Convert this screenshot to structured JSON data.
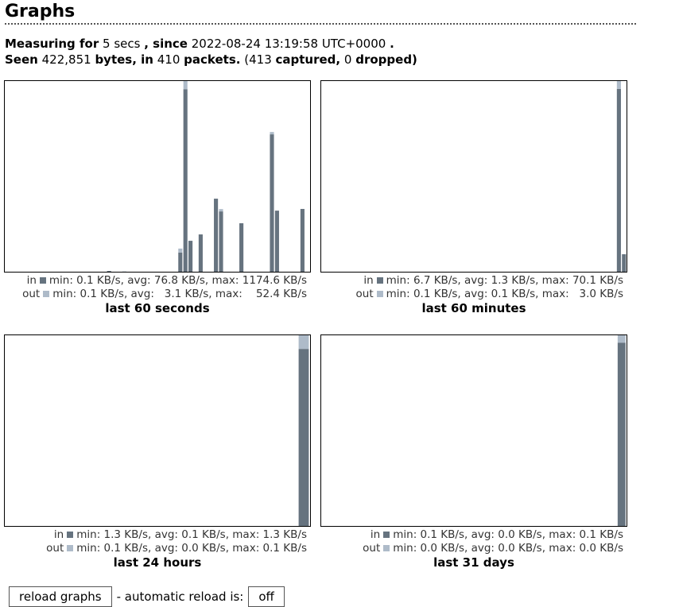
{
  "header": {
    "title": "Graphs"
  },
  "info": {
    "line1": [
      {
        "text": "Measuring for",
        "bold": true
      },
      {
        "text": "5 secs",
        "bold": false
      },
      {
        "text": ", since",
        "bold": true
      },
      {
        "text": "2022-08-24 13:19:58 UTC+0000",
        "bold": false
      },
      {
        "text": ".",
        "bold": true
      }
    ],
    "line2": [
      {
        "text": "Seen",
        "bold": true
      },
      {
        "text": "422,851",
        "bold": false
      },
      {
        "text": "bytes, in",
        "bold": true
      },
      {
        "text": "410",
        "bold": false
      },
      {
        "text": "packets.",
        "bold": true
      },
      {
        "text": "(413",
        "bold": false
      },
      {
        "text": "captured,",
        "bold": true
      },
      {
        "text": "0",
        "bold": false
      },
      {
        "text": "dropped)",
        "bold": true
      }
    ]
  },
  "in_color": "#66737f",
  "out_color": "#aebbc9",
  "graphs": [
    {
      "title": "last 60 seconds",
      "in_label": "in",
      "out_label": "out",
      "in_stats": "min: 0.1 KB/s, avg: 76.8 KB/s, max: 1174.6 KB/s",
      "out_stats": "min: 0.1 KB/s, avg:   3.1 KB/s, max:    52.4 KB/s",
      "ylim": [
        0,
        1227
      ],
      "bars_in": [
        0,
        0,
        0,
        0,
        0,
        0,
        0,
        0,
        0,
        0,
        0,
        0,
        0,
        0,
        0,
        0,
        0,
        0,
        0,
        0,
        5,
        0,
        0,
        0,
        0,
        0,
        0,
        0,
        0,
        0,
        0,
        0,
        0,
        0,
        123,
        1174.6,
        199,
        0,
        240,
        0,
        0,
        470,
        388,
        0,
        0,
        0,
        312,
        0,
        0,
        0,
        0,
        0,
        884,
        393,
        0,
        0,
        0,
        0,
        404,
        0
      ],
      "bars_out": [
        0,
        0,
        0,
        0,
        0,
        0,
        0,
        0,
        0,
        0,
        0,
        0,
        0,
        0,
        0,
        0,
        0,
        0,
        0,
        0,
        0,
        0,
        0,
        2,
        0,
        0,
        0,
        0,
        0,
        0,
        0,
        0,
        0,
        0,
        26,
        52.4,
        0,
        0,
        0,
        0,
        0,
        0,
        15,
        0,
        0,
        0,
        0,
        0,
        0,
        0,
        0,
        0,
        15,
        0,
        0,
        0,
        0,
        0,
        0,
        0
      ]
    },
    {
      "title": "last 60 minutes",
      "in_label": "in",
      "out_label": "out",
      "in_stats": "min: 6.7 KB/s, avg: 1.3 KB/s, max: 70.1 KB/s",
      "out_stats": "min: 0.1 KB/s, avg: 0.1 KB/s, max:   3.0 KB/s",
      "ylim": [
        0,
        73.1
      ],
      "bars_in": [
        0,
        0,
        0,
        0,
        0,
        0,
        0,
        0,
        0,
        0,
        0,
        0,
        0,
        0,
        0,
        0,
        0,
        0,
        0,
        0,
        0,
        0,
        0,
        0,
        0,
        0,
        0,
        0,
        0,
        0,
        0,
        0,
        0,
        0,
        0,
        0,
        0,
        0,
        0,
        0,
        0,
        0,
        0,
        0,
        0,
        0,
        0,
        0,
        0,
        0,
        0,
        0,
        0,
        0,
        0,
        0,
        0,
        0,
        70.1,
        6.7
      ],
      "bars_out": [
        0,
        0,
        0,
        0,
        0,
        0,
        0,
        0,
        0,
        0,
        0,
        0,
        0,
        0,
        0,
        0,
        0,
        0,
        0,
        0,
        0,
        0,
        0,
        0,
        0,
        0,
        0,
        0,
        0,
        0,
        0,
        0,
        0,
        0,
        0,
        0,
        0,
        0,
        0,
        0,
        0,
        0,
        0,
        0,
        0,
        0,
        0,
        0,
        0,
        0,
        0,
        0,
        0,
        0,
        0,
        0,
        0,
        0,
        3,
        0
      ]
    },
    {
      "title": "last 24 hours",
      "in_label": "in",
      "out_label": "out",
      "in_stats": "min: 1.3 KB/s, avg: 0.1 KB/s, max: 1.3 KB/s",
      "out_stats": "min: 0.1 KB/s, avg: 0.0 KB/s, max: 0.1 KB/s",
      "ylim": [
        0,
        1.4
      ],
      "bars_in": [
        0,
        0,
        0,
        0,
        0,
        0,
        0,
        0,
        0,
        0,
        0,
        0,
        0,
        0,
        0,
        0,
        0,
        0,
        0,
        0,
        0,
        0,
        0,
        1.3
      ],
      "bars_out": [
        0,
        0,
        0,
        0,
        0,
        0,
        0,
        0,
        0,
        0,
        0,
        0,
        0,
        0,
        0,
        0,
        0,
        0,
        0,
        0,
        0,
        0,
        0,
        0.1
      ]
    },
    {
      "title": "last 31 days",
      "in_label": "in",
      "out_label": "out",
      "in_stats": "min: 0.1 KB/s, avg: 0.0 KB/s, max: 0.1 KB/s",
      "out_stats": "min: 0.0 KB/s, avg: 0.0 KB/s, max: 0.0 KB/s",
      "ylim": [
        0,
        0.104
      ],
      "bars_in": [
        0,
        0,
        0,
        0,
        0,
        0,
        0,
        0,
        0,
        0,
        0,
        0,
        0,
        0,
        0,
        0,
        0,
        0,
        0,
        0,
        0,
        0,
        0,
        0,
        0,
        0,
        0,
        0,
        0,
        0,
        0.1
      ],
      "bars_out": [
        0,
        0,
        0,
        0,
        0,
        0,
        0,
        0,
        0,
        0,
        0,
        0,
        0,
        0,
        0,
        0,
        0,
        0,
        0,
        0,
        0,
        0,
        0,
        0,
        0,
        0,
        0,
        0,
        0,
        0,
        0.004
      ]
    }
  ],
  "controls": {
    "reload": "reload graphs",
    "auto_label": "- automatic reload is:",
    "auto_state": "off"
  }
}
